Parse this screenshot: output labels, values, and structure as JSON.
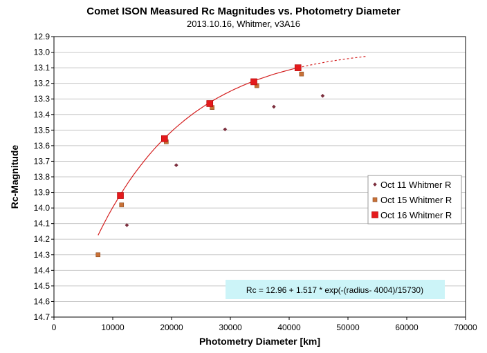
{
  "chart_data": {
    "type": "scatter",
    "title": "Comet ISON Measured Rc Magnitudes vs. Photometry Diameter",
    "subtitle": "2013.10.16,  Whitmer, v3A16",
    "xlabel": "Photometry Diameter  [km]",
    "ylabel": "Rc-Magnitude",
    "xlim": [
      0,
      70000
    ],
    "ylim": [
      14.7,
      12.9
    ],
    "y_reversed": true,
    "x_ticks": [
      "0",
      "10000",
      "20000",
      "30000",
      "40000",
      "50000",
      "60000",
      "70000"
    ],
    "y_ticks": [
      "12.9",
      "13.0",
      "13.1",
      "13.2",
      "13.3",
      "13.4",
      "13.5",
      "13.6",
      "13.7",
      "13.8",
      "13.9",
      "14.0",
      "14.1",
      "14.2",
      "14.3",
      "14.4",
      "14.5",
      "14.6",
      "14.7"
    ],
    "grid": "horizontal",
    "legend_position": "right",
    "series": [
      {
        "name": "Oct 11 Whitmer R",
        "marker": "diamond",
        "color": "#7b2d3c",
        "points": [
          [
            12400,
            14.11
          ],
          [
            20800,
            13.725
          ],
          [
            29100,
            13.495
          ],
          [
            37400,
            13.35
          ],
          [
            45700,
            13.28
          ]
        ]
      },
      {
        "name": "Oct 15 Whitmer R",
        "marker": "square",
        "color": "#c87137",
        "points": [
          [
            7500,
            14.3
          ],
          [
            11500,
            13.98
          ],
          [
            19100,
            13.575
          ],
          [
            26900,
            13.355
          ],
          [
            34500,
            13.215
          ],
          [
            42100,
            13.14
          ]
        ]
      },
      {
        "name": "Oct 16 Whitmer R",
        "marker": "square-large",
        "color": "#e41a1c",
        "points": [
          [
            11300,
            13.92
          ],
          [
            18800,
            13.555
          ],
          [
            26500,
            13.33
          ],
          [
            34000,
            13.19
          ],
          [
            41500,
            13.1
          ]
        ]
      }
    ],
    "fit": {
      "a": 12.96,
      "b": 1.517,
      "r0": 4004,
      "scale": 15730,
      "solid_range": [
        7500,
        41500
      ],
      "dashed_range": [
        41500,
        53000
      ],
      "color": "#d42020"
    },
    "equation_label": "Rc = 12.96 + 1.517 * exp(-(radius- 4004)/15730)",
    "equation_bg": "#ccf4f8"
  }
}
